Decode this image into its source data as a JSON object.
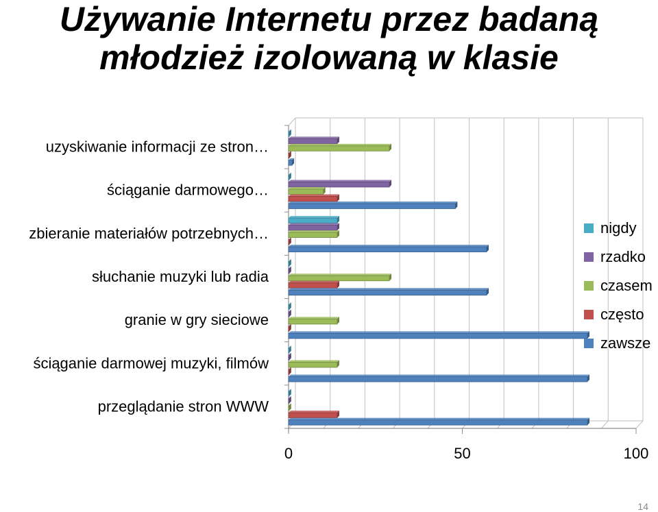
{
  "slide": {
    "title_line1": "Używanie Internetu przez badaną",
    "title_line2": "młodzież izolowaną w klasie",
    "page_number": "14"
  },
  "chart_data": {
    "type": "bar",
    "orientation": "horizontal",
    "categories": [
      "uzyskiwanie informacji ze stron…",
      "ściąganie darmowego…",
      "zbieranie materiałów potrzebnych…",
      "słuchanie muzyki lub radia",
      "granie w gry sieciowe",
      "ściąganie darmowej muzyki, filmów",
      "przeglądanie stron WWW"
    ],
    "series": [
      {
        "name": "nigdy",
        "color": "#4BACC6",
        "values": [
          0,
          0,
          14,
          0,
          0,
          0,
          0
        ]
      },
      {
        "name": "rzadko",
        "color": "#8064A2",
        "values": [
          14,
          29,
          14,
          0,
          0,
          0,
          0
        ]
      },
      {
        "name": "czasem",
        "color": "#9BBB59",
        "values": [
          29,
          10,
          14,
          29,
          14,
          14,
          0
        ]
      },
      {
        "name": "często",
        "color": "#C0504D",
        "values": [
          0,
          14,
          0,
          14,
          0,
          0,
          14
        ]
      },
      {
        "name": "zawsze",
        "color": "#4F81BD",
        "values": [
          1,
          48,
          57,
          57,
          86,
          86,
          86
        ]
      }
    ],
    "xlim": [
      0,
      100
    ],
    "xticks": [
      0,
      50,
      100
    ],
    "grid": true,
    "legend_position": "right"
  }
}
